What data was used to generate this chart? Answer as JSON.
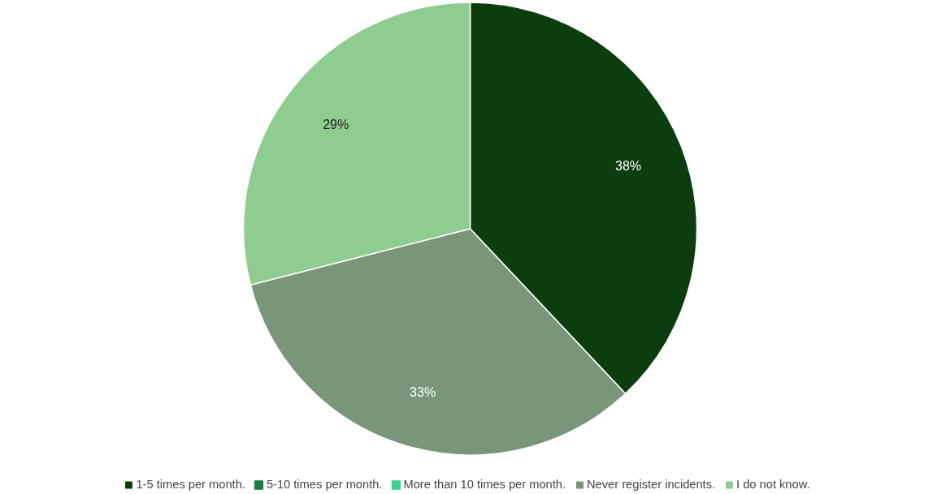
{
  "chart_data": {
    "type": "pie",
    "categories": [
      "1-5 times per month.",
      "5-10 times per month.",
      "More than 10 times per month.",
      "Never register incidents.",
      "I do not know."
    ],
    "values": [
      38,
      0,
      0,
      33,
      29
    ],
    "colors": [
      "#0b3d0e",
      "#1a7a40",
      "#3ecf8e",
      "#7a967a",
      "#8fcc8f"
    ],
    "value_labels": [
      "38%",
      null,
      null,
      "33%",
      "29%"
    ],
    "legend": "bottom"
  }
}
